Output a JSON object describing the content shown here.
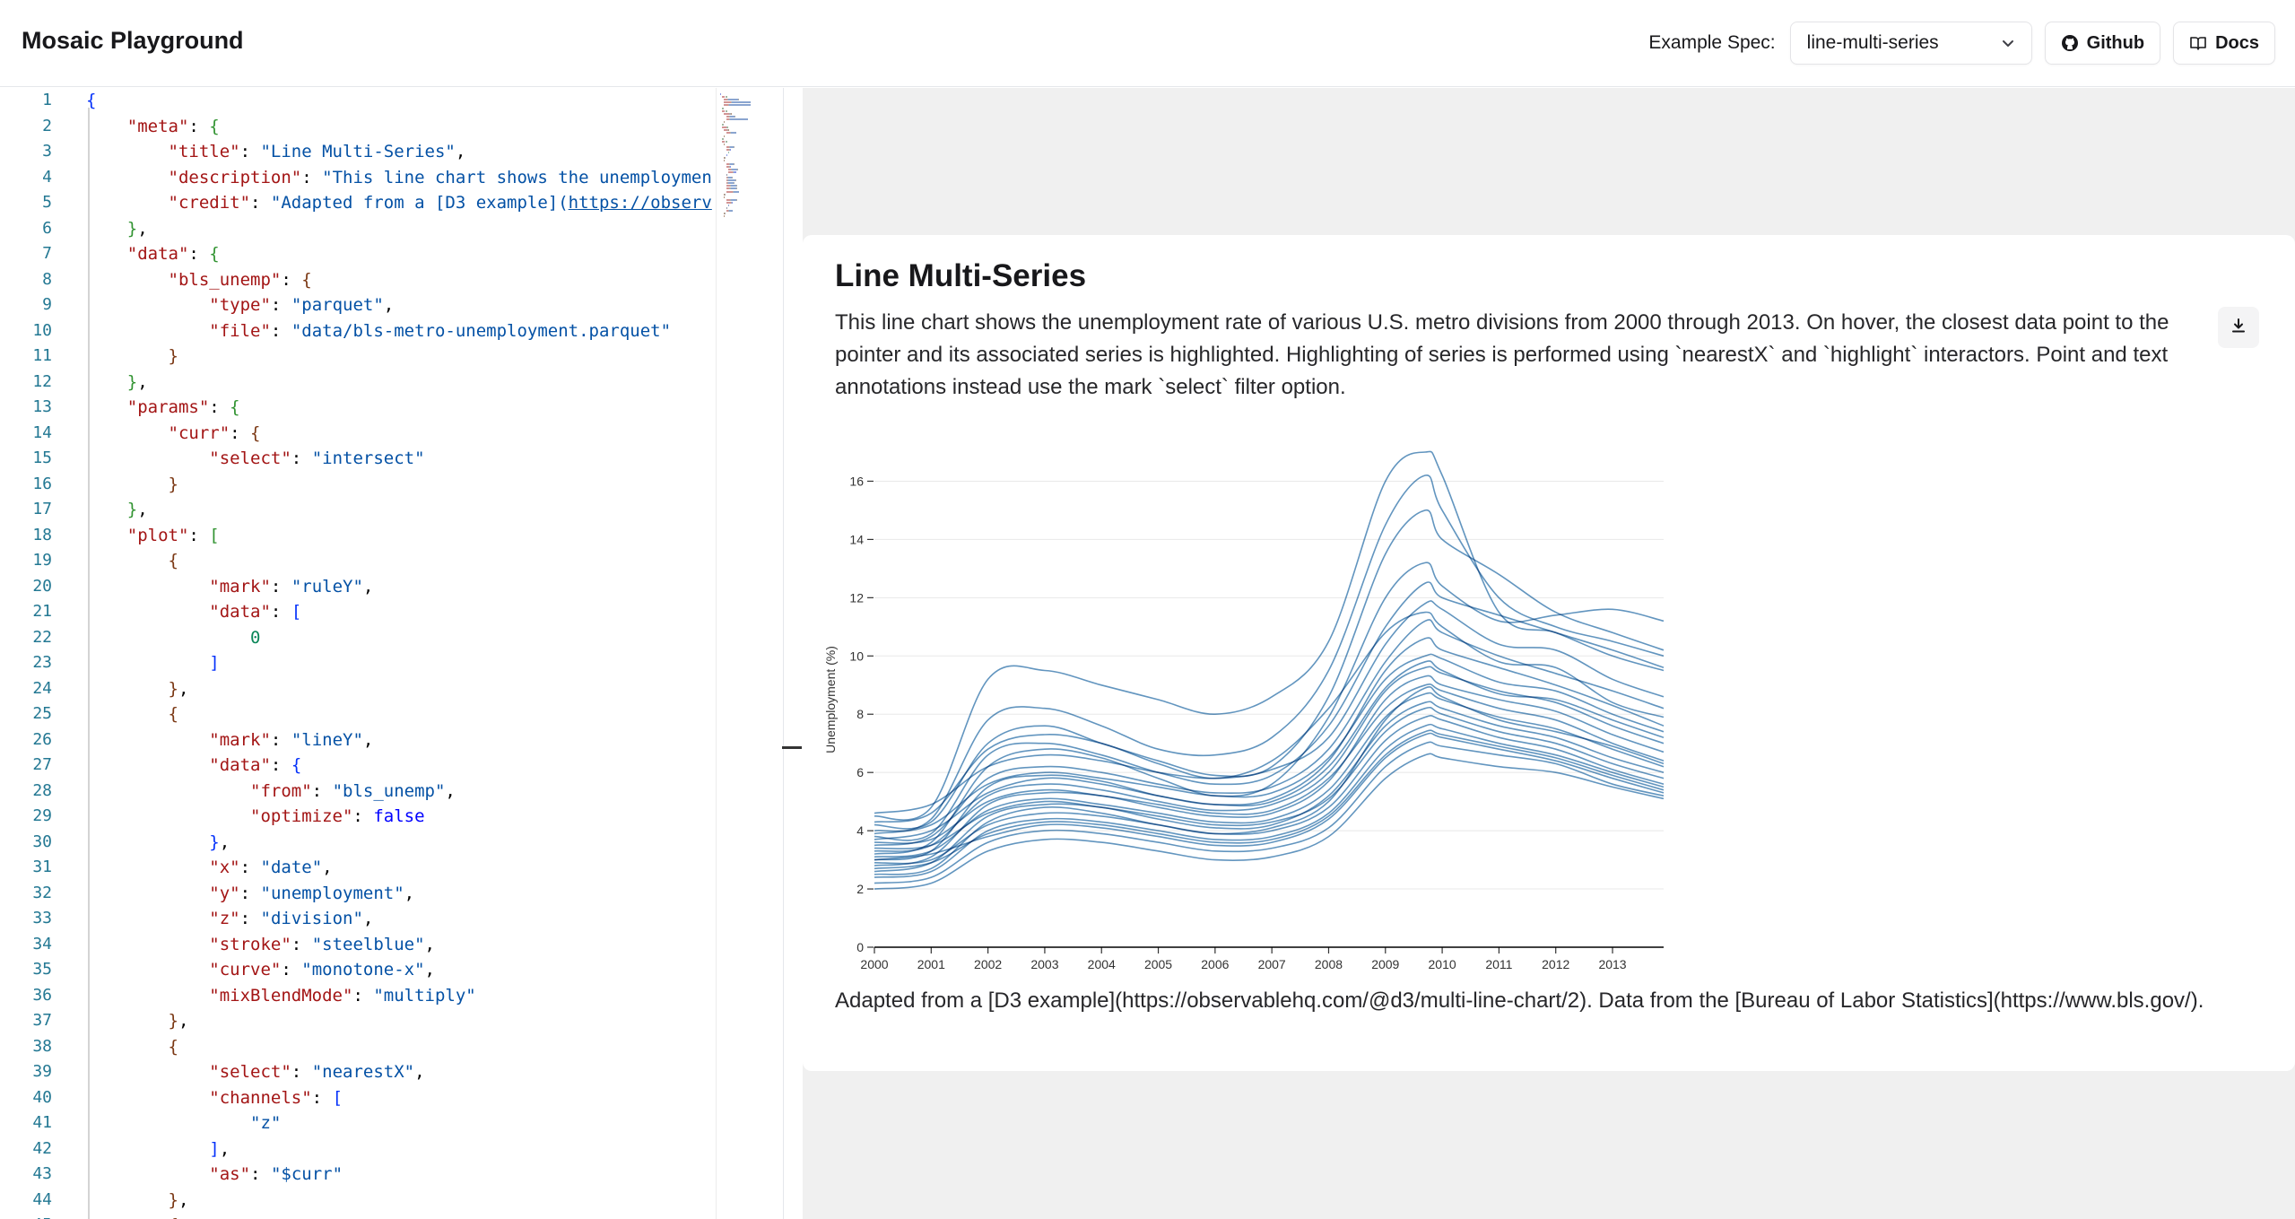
{
  "header": {
    "app_title": "Mosaic Playground",
    "spec_label": "Example Spec:",
    "spec_value": "line-multi-series",
    "github_label": "Github",
    "docs_label": "Docs"
  },
  "editor": {
    "lines": [
      [
        [
          "b0",
          "{"
        ]
      ],
      [
        [
          "i",
          "    "
        ],
        [
          "k",
          "\"meta\""
        ],
        [
          "p",
          ": "
        ],
        [
          "b1",
          "{"
        ]
      ],
      [
        [
          "i",
          "        "
        ],
        [
          "k",
          "\"title\""
        ],
        [
          "p",
          ": "
        ],
        [
          "s",
          "\"Line Multi-Series\""
        ],
        [
          "p",
          ","
        ]
      ],
      [
        [
          "i",
          "        "
        ],
        [
          "k",
          "\"description\""
        ],
        [
          "p",
          ": "
        ],
        [
          "s",
          "\"This line chart shows the unemploymen"
        ]
      ],
      [
        [
          "i",
          "        "
        ],
        [
          "k",
          "\"credit\""
        ],
        [
          "p",
          ": "
        ],
        [
          "s",
          "\"Adapted from a [D3 example]("
        ],
        [
          "u",
          "https://observ"
        ]
      ],
      [
        [
          "i",
          "    "
        ],
        [
          "b1",
          "}"
        ],
        [
          "p",
          ","
        ]
      ],
      [
        [
          "i",
          "    "
        ],
        [
          "k",
          "\"data\""
        ],
        [
          "p",
          ": "
        ],
        [
          "b1",
          "{"
        ]
      ],
      [
        [
          "i",
          "        "
        ],
        [
          "k",
          "\"bls_unemp\""
        ],
        [
          "p",
          ": "
        ],
        [
          "b2",
          "{"
        ]
      ],
      [
        [
          "i",
          "            "
        ],
        [
          "k",
          "\"type\""
        ],
        [
          "p",
          ": "
        ],
        [
          "s",
          "\"parquet\""
        ],
        [
          "p",
          ","
        ]
      ],
      [
        [
          "i",
          "            "
        ],
        [
          "k",
          "\"file\""
        ],
        [
          "p",
          ": "
        ],
        [
          "s",
          "\"data/bls-metro-unemployment.parquet\""
        ]
      ],
      [
        [
          "i",
          "        "
        ],
        [
          "b2",
          "}"
        ]
      ],
      [
        [
          "i",
          "    "
        ],
        [
          "b1",
          "}"
        ],
        [
          "p",
          ","
        ]
      ],
      [
        [
          "i",
          "    "
        ],
        [
          "k",
          "\"params\""
        ],
        [
          "p",
          ": "
        ],
        [
          "b1",
          "{"
        ]
      ],
      [
        [
          "i",
          "        "
        ],
        [
          "k",
          "\"curr\""
        ],
        [
          "p",
          ": "
        ],
        [
          "b2",
          "{"
        ]
      ],
      [
        [
          "i",
          "            "
        ],
        [
          "k",
          "\"select\""
        ],
        [
          "p",
          ": "
        ],
        [
          "s",
          "\"intersect\""
        ]
      ],
      [
        [
          "i",
          "        "
        ],
        [
          "b2",
          "}"
        ]
      ],
      [
        [
          "i",
          "    "
        ],
        [
          "b1",
          "}"
        ],
        [
          "p",
          ","
        ]
      ],
      [
        [
          "i",
          "    "
        ],
        [
          "k",
          "\"plot\""
        ],
        [
          "p",
          ": "
        ],
        [
          "b1",
          "["
        ]
      ],
      [
        [
          "i",
          "        "
        ],
        [
          "b2",
          "{"
        ]
      ],
      [
        [
          "i",
          "            "
        ],
        [
          "k",
          "\"mark\""
        ],
        [
          "p",
          ": "
        ],
        [
          "s",
          "\"ruleY\""
        ],
        [
          "p",
          ","
        ]
      ],
      [
        [
          "i",
          "            "
        ],
        [
          "k",
          "\"data\""
        ],
        [
          "p",
          ": "
        ],
        [
          "b0",
          "["
        ]
      ],
      [
        [
          "i",
          "                "
        ],
        [
          "n",
          "0"
        ]
      ],
      [
        [
          "i",
          "            "
        ],
        [
          "b0",
          "]"
        ]
      ],
      [
        [
          "i",
          "        "
        ],
        [
          "b2",
          "}"
        ],
        [
          "p",
          ","
        ]
      ],
      [
        [
          "i",
          "        "
        ],
        [
          "b2",
          "{"
        ]
      ],
      [
        [
          "i",
          "            "
        ],
        [
          "k",
          "\"mark\""
        ],
        [
          "p",
          ": "
        ],
        [
          "s",
          "\"lineY\""
        ],
        [
          "p",
          ","
        ]
      ],
      [
        [
          "i",
          "            "
        ],
        [
          "k",
          "\"data\""
        ],
        [
          "p",
          ": "
        ],
        [
          "b0",
          "{"
        ]
      ],
      [
        [
          "i",
          "                "
        ],
        [
          "k",
          "\"from\""
        ],
        [
          "p",
          ": "
        ],
        [
          "s",
          "\"bls_unemp\""
        ],
        [
          "p",
          ","
        ]
      ],
      [
        [
          "i",
          "                "
        ],
        [
          "k",
          "\"optimize\""
        ],
        [
          "p",
          ": "
        ],
        [
          "kw",
          "false"
        ]
      ],
      [
        [
          "i",
          "            "
        ],
        [
          "b0",
          "}"
        ],
        [
          "p",
          ","
        ]
      ],
      [
        [
          "i",
          "            "
        ],
        [
          "k",
          "\"x\""
        ],
        [
          "p",
          ": "
        ],
        [
          "s",
          "\"date\""
        ],
        [
          "p",
          ","
        ]
      ],
      [
        [
          "i",
          "            "
        ],
        [
          "k",
          "\"y\""
        ],
        [
          "p",
          ": "
        ],
        [
          "s",
          "\"unemployment\""
        ],
        [
          "p",
          ","
        ]
      ],
      [
        [
          "i",
          "            "
        ],
        [
          "k",
          "\"z\""
        ],
        [
          "p",
          ": "
        ],
        [
          "s",
          "\"division\""
        ],
        [
          "p",
          ","
        ]
      ],
      [
        [
          "i",
          "            "
        ],
        [
          "k",
          "\"stroke\""
        ],
        [
          "p",
          ": "
        ],
        [
          "s",
          "\"steelblue\""
        ],
        [
          "p",
          ","
        ]
      ],
      [
        [
          "i",
          "            "
        ],
        [
          "k",
          "\"curve\""
        ],
        [
          "p",
          ": "
        ],
        [
          "s",
          "\"monotone-x\""
        ],
        [
          "p",
          ","
        ]
      ],
      [
        [
          "i",
          "            "
        ],
        [
          "k",
          "\"mixBlendMode\""
        ],
        [
          "p",
          ": "
        ],
        [
          "s",
          "\"multiply\""
        ]
      ],
      [
        [
          "i",
          "        "
        ],
        [
          "b2",
          "}"
        ],
        [
          "p",
          ","
        ]
      ],
      [
        [
          "i",
          "        "
        ],
        [
          "b2",
          "{"
        ]
      ],
      [
        [
          "i",
          "            "
        ],
        [
          "k",
          "\"select\""
        ],
        [
          "p",
          ": "
        ],
        [
          "s",
          "\"nearestX\""
        ],
        [
          "p",
          ","
        ]
      ],
      [
        [
          "i",
          "            "
        ],
        [
          "k",
          "\"channels\""
        ],
        [
          "p",
          ": "
        ],
        [
          "b0",
          "["
        ]
      ],
      [
        [
          "i",
          "                "
        ],
        [
          "s",
          "\"z\""
        ]
      ],
      [
        [
          "i",
          "            "
        ],
        [
          "b0",
          "]"
        ],
        [
          "p",
          ","
        ]
      ],
      [
        [
          "i",
          "            "
        ],
        [
          "k",
          "\"as\""
        ],
        [
          "p",
          ": "
        ],
        [
          "s",
          "\"$curr\""
        ]
      ],
      [
        [
          "i",
          "        "
        ],
        [
          "b2",
          "}"
        ],
        [
          "p",
          ","
        ]
      ],
      [
        [
          "i",
          "        "
        ],
        [
          "b2",
          "{"
        ]
      ]
    ]
  },
  "preview": {
    "title": "Line Multi-Series",
    "description": "This line chart shows the unemployment rate of various U.S. metro divisions from 2000 through 2013. On hover, the closest data point to the pointer and its associated series is highlighted. Highlighting of series is performed using `nearestX` and `highlight` interactors. Point and text annotations instead use the mark `select` filter option.",
    "credit": "Adapted from a [D3 example](https://observablehq.com/@d3/multi-line-chart/2). Data from the [Bureau of Labor Statistics](https://www.bls.gov/)."
  },
  "chart_data": {
    "type": "line",
    "ylabel": "Unemployment (%)",
    "xlabel": "",
    "xlim": [
      2000,
      2013.9
    ],
    "ylim": [
      0,
      17
    ],
    "x_ticks": [
      "2000",
      "2001",
      "2002",
      "2003",
      "2004",
      "2005",
      "2006",
      "2007",
      "2008",
      "2009",
      "2010",
      "2011",
      "2012",
      "2013"
    ],
    "y_ticks": [
      "0",
      "2",
      "4",
      "6",
      "8",
      "10",
      "12",
      "14",
      "16"
    ],
    "grid": "horizontal",
    "stroke": "steelblue",
    "x": [
      2000,
      2001,
      2002,
      2003,
      2004,
      2005,
      2006,
      2007,
      2008,
      2009,
      2009.7,
      2010,
      2011,
      2012,
      2013,
      2013.9
    ],
    "series": [
      {
        "values": [
          4.5,
          4.8,
          9.2,
          9.5,
          9.0,
          8.5,
          8.0,
          8.6,
          10.5,
          16.0,
          17.0,
          16.2,
          11.5,
          10.8,
          10.0,
          9.5
        ]
      },
      {
        "values": [
          4.0,
          4.4,
          7.8,
          8.2,
          7.6,
          6.8,
          6.6,
          7.2,
          9.5,
          14.5,
          16.2,
          15.0,
          12.0,
          11.0,
          10.5,
          10.0
        ]
      },
      {
        "values": [
          4.2,
          4.3,
          7.0,
          7.6,
          7.0,
          6.4,
          5.9,
          6.2,
          8.6,
          13.5,
          15.0,
          14.0,
          12.8,
          11.5,
          10.8,
          10.2
        ]
      },
      {
        "values": [
          3.2,
          3.6,
          6.2,
          6.8,
          6.5,
          5.8,
          5.2,
          5.6,
          7.9,
          12.0,
          13.2,
          12.4,
          11.2,
          11.4,
          11.6,
          11.2
        ]
      },
      {
        "values": [
          3.8,
          3.9,
          6.6,
          7.0,
          6.6,
          6.0,
          5.6,
          5.9,
          7.6,
          11.0,
          12.5,
          12.0,
          11.4,
          10.8,
          10.2,
          9.6
        ]
      },
      {
        "values": [
          4.6,
          4.9,
          6.2,
          6.6,
          6.4,
          6.0,
          5.8,
          6.1,
          7.2,
          10.4,
          11.8,
          11.6,
          10.4,
          10.2,
          9.2,
          8.6
        ]
      },
      {
        "values": [
          3.5,
          3.8,
          5.8,
          6.2,
          6.0,
          5.6,
          5.3,
          5.5,
          6.8,
          9.8,
          11.2,
          10.8,
          10.0,
          9.4,
          8.8,
          8.2
        ]
      },
      {
        "values": [
          3.0,
          3.3,
          5.5,
          5.9,
          5.7,
          5.2,
          4.9,
          5.1,
          6.4,
          9.5,
          10.6,
          10.2,
          9.6,
          9.0,
          8.3,
          7.6
        ]
      },
      {
        "values": [
          3.9,
          4.2,
          5.6,
          6.0,
          5.8,
          5.5,
          5.2,
          5.3,
          6.5,
          9.2,
          10.0,
          9.9,
          9.1,
          8.8,
          8.0,
          7.4
        ]
      },
      {
        "values": [
          3.3,
          3.5,
          5.2,
          5.6,
          5.4,
          5.0,
          4.7,
          4.9,
          6.0,
          8.8,
          9.6,
          9.4,
          8.8,
          8.4,
          7.6,
          7.0
        ]
      },
      {
        "values": [
          2.8,
          3.1,
          4.9,
          5.3,
          5.2,
          4.8,
          4.5,
          4.6,
          5.7,
          8.5,
          9.3,
          9.0,
          8.5,
          8.1,
          7.3,
          6.7
        ]
      },
      {
        "values": [
          3.6,
          3.7,
          5.0,
          5.4,
          5.2,
          4.9,
          4.6,
          4.7,
          5.8,
          8.2,
          9.0,
          8.8,
          8.2,
          7.8,
          7.0,
          6.4
        ]
      },
      {
        "values": [
          3.1,
          3.3,
          4.7,
          5.1,
          4.9,
          4.6,
          4.3,
          4.4,
          5.4,
          7.9,
          8.7,
          8.5,
          7.9,
          7.5,
          6.8,
          6.2
        ]
      },
      {
        "values": [
          2.6,
          2.9,
          4.5,
          4.9,
          4.8,
          4.4,
          4.1,
          4.2,
          5.2,
          7.6,
          8.4,
          8.2,
          7.6,
          7.2,
          6.5,
          6.0
        ]
      },
      {
        "values": [
          3.4,
          3.5,
          4.6,
          5.0,
          4.8,
          4.5,
          4.2,
          4.3,
          5.1,
          7.4,
          8.2,
          8.0,
          7.4,
          7.0,
          6.3,
          5.8
        ]
      },
      {
        "values": [
          2.9,
          3.0,
          4.2,
          4.6,
          4.5,
          4.2,
          3.9,
          4.0,
          4.8,
          7.1,
          7.9,
          7.8,
          7.2,
          6.8,
          6.1,
          5.6
        ]
      },
      {
        "values": [
          2.4,
          2.6,
          4.0,
          4.4,
          4.3,
          4.0,
          3.7,
          3.8,
          4.6,
          6.8,
          7.6,
          7.5,
          7.0,
          6.6,
          6.0,
          5.5
        ]
      },
      {
        "values": [
          3.0,
          3.2,
          3.8,
          4.2,
          4.1,
          3.8,
          3.5,
          3.6,
          4.4,
          6.5,
          7.3,
          7.2,
          6.8,
          6.4,
          5.8,
          5.3
        ]
      },
      {
        "values": [
          2.2,
          2.4,
          3.6,
          4.0,
          3.9,
          3.6,
          3.3,
          3.4,
          4.1,
          6.2,
          7.0,
          6.9,
          6.6,
          6.3,
          5.6,
          5.2
        ]
      },
      {
        "values": [
          2.0,
          2.2,
          3.3,
          3.7,
          3.6,
          3.3,
          3.0,
          3.1,
          3.8,
          5.8,
          6.6,
          6.5,
          6.2,
          6.0,
          5.5,
          5.1
        ]
      },
      {
        "values": [
          4.3,
          4.6,
          6.8,
          7.3,
          7.0,
          6.3,
          5.8,
          6.4,
          8.2,
          10.8,
          11.5,
          11.0,
          9.8,
          9.6,
          8.4,
          7.9
        ]
      },
      {
        "values": [
          2.5,
          2.7,
          4.3,
          4.8,
          4.6,
          4.2,
          3.9,
          4.1,
          5.0,
          7.8,
          8.9,
          8.6,
          7.8,
          7.4,
          6.9,
          6.3
        ]
      },
      {
        "values": [
          3.7,
          4.0,
          5.3,
          5.8,
          5.6,
          5.2,
          4.9,
          5.0,
          6.2,
          8.9,
          9.8,
          9.5,
          8.7,
          8.5,
          7.8,
          7.2
        ]
      },
      {
        "values": [
          2.7,
          2.9,
          3.9,
          4.3,
          4.2,
          3.9,
          3.6,
          3.7,
          4.5,
          6.6,
          7.4,
          7.3,
          6.9,
          6.5,
          5.9,
          5.4
        ]
      }
    ]
  }
}
